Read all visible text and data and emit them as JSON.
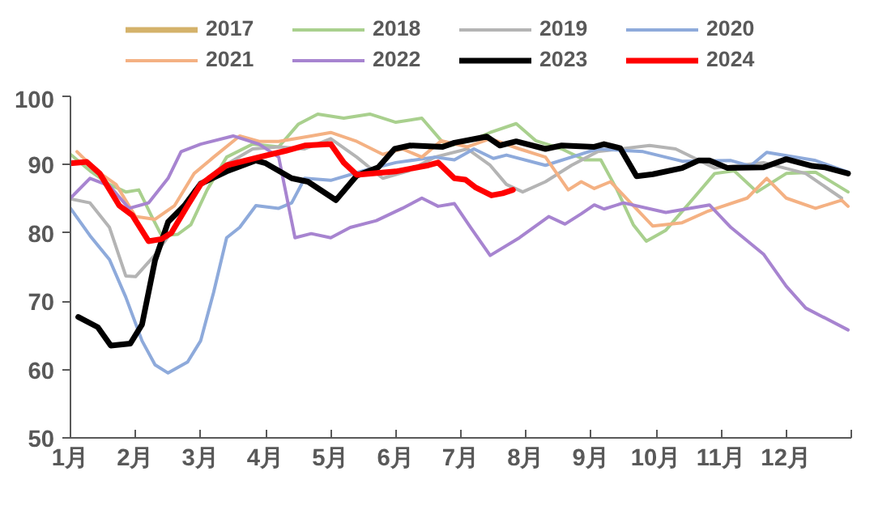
{
  "chart_data": {
    "type": "line",
    "xlim": [
      1,
      13
    ],
    "xticks": [
      {
        "value": 1,
        "label": "1月"
      },
      {
        "value": 2,
        "label": "2月"
      },
      {
        "value": 3,
        "label": "3月"
      },
      {
        "value": 4,
        "label": "4月"
      },
      {
        "value": 5,
        "label": "5月"
      },
      {
        "value": 6,
        "label": "6月"
      },
      {
        "value": 7,
        "label": "7月"
      },
      {
        "value": 8,
        "label": "8月"
      },
      {
        "value": 9,
        "label": "9月"
      },
      {
        "value": 10,
        "label": "10月"
      },
      {
        "value": 11,
        "label": "11月"
      },
      {
        "value": 12,
        "label": "12月"
      },
      {
        "value": 13,
        "label": null
      }
    ],
    "ylim": [
      50,
      100
    ],
    "yticks": [
      50,
      60,
      70,
      80,
      90,
      100
    ],
    "grid": false,
    "legend": "top",
    "marker": "none",
    "line_style": "solid",
    "series": [
      {
        "name": "2017",
        "color": "#d4b26a"
      },
      {
        "name": "2018",
        "color": "#a9d08e",
        "x": [
          1.0,
          1.3,
          1.6,
          1.85,
          2.05,
          2.25,
          2.4,
          2.65,
          2.85,
          3.1,
          3.4,
          3.8,
          4.2,
          4.5,
          4.8,
          5.2,
          5.6,
          6.0,
          6.4,
          6.7,
          6.8,
          7.15,
          7.45,
          7.85,
          8.15,
          8.55,
          8.9,
          9.15,
          9.4,
          9.65,
          9.85,
          10.15,
          10.55,
          10.9,
          11.2,
          11.55,
          12.0,
          12.45,
          12.95
        ],
        "values": [
          91.5,
          89.1,
          87.1,
          86,
          86.3,
          82.4,
          79.6,
          79.8,
          81.2,
          86.3,
          91.1,
          93,
          92.6,
          95.9,
          97.4,
          96.8,
          97.4,
          96.2,
          96.8,
          93.5,
          92.7,
          93.5,
          94.7,
          96,
          93.5,
          92.3,
          90.7,
          90.7,
          86.3,
          81.2,
          78.8,
          80.4,
          84.8,
          88.7,
          89.1,
          86,
          88.7,
          88.9,
          86
        ]
      },
      {
        "name": "2019",
        "color": "#b4b4b4",
        "x": [
          1.0,
          1.3,
          1.6,
          1.85,
          2.0,
          2.3,
          2.6,
          2.9,
          3.3,
          3.8,
          4.2,
          4.6,
          5.0,
          5.4,
          5.8,
          6.2,
          6.6,
          7.1,
          7.45,
          7.7,
          7.95,
          8.3,
          8.7,
          9.1,
          9.9,
          10.3,
          10.9,
          11.65,
          12.3,
          12.85
        ],
        "values": [
          85,
          84.4,
          80.8,
          73.7,
          73.6,
          76.8,
          80.8,
          86.3,
          89.5,
          92.3,
          92.6,
          92.3,
          93.8,
          91.1,
          88,
          89.1,
          91.1,
          92.3,
          89.9,
          87.1,
          86,
          87.5,
          89.9,
          91.9,
          92.8,
          92.3,
          89.5,
          90.3,
          88.7,
          85.1
        ]
      },
      {
        "name": "2020",
        "color": "#8eaadb",
        "x": [
          1.0,
          1.3,
          1.6,
          1.85,
          2.1,
          2.3,
          2.5,
          2.8,
          3.0,
          3.2,
          3.4,
          3.6,
          3.85,
          4.2,
          4.4,
          4.6,
          5.0,
          5.5,
          6.0,
          6.6,
          6.9,
          7.2,
          7.5,
          7.7,
          8.3,
          8.8,
          9.1,
          9.8,
          10.4,
          11.15,
          11.45,
          11.7,
          12.45,
          12.95
        ],
        "values": [
          83.6,
          79.6,
          76.1,
          70.6,
          64.2,
          60.7,
          59.5,
          61.1,
          64.2,
          71.3,
          79.3,
          80.8,
          84,
          83.6,
          84.4,
          88,
          87.7,
          89.1,
          90.3,
          91.1,
          90.7,
          92.3,
          90.9,
          91.4,
          89.9,
          91.4,
          92.3,
          91.9,
          90.5,
          90.6,
          89.8,
          91.8,
          90.6,
          88.9
        ]
      },
      {
        "name": "2021",
        "color": "#f4b183",
        "x": [
          1.1,
          1.4,
          1.7,
          2.0,
          2.3,
          2.6,
          2.9,
          3.2,
          3.6,
          3.9,
          4.2,
          4.7,
          5.0,
          5.4,
          5.8,
          6.1,
          6.4,
          6.7,
          7.1,
          7.45,
          7.9,
          8.3,
          8.65,
          8.85,
          9.05,
          9.3,
          9.65,
          9.95,
          10.4,
          10.8,
          11.4,
          11.7,
          12.0,
          12.45,
          12.85,
          12.95
        ],
        "values": [
          91.9,
          89.1,
          87.1,
          82.4,
          82,
          84,
          88.7,
          91.1,
          94.2,
          93.4,
          93.4,
          94.2,
          94.7,
          93.4,
          91.5,
          92.3,
          91.1,
          93.5,
          92.6,
          93.8,
          92.3,
          91.1,
          86.3,
          87.5,
          86.5,
          87.5,
          84,
          81,
          81.5,
          83.2,
          85.1,
          88,
          85.1,
          83.6,
          84.8,
          83.9
        ]
      },
      {
        "name": "2022",
        "color": "#a784d0",
        "x": [
          1.0,
          1.3,
          1.6,
          1.9,
          2.2,
          2.5,
          2.7,
          3.0,
          3.5,
          3.9,
          4.2,
          4.45,
          4.7,
          5.0,
          5.3,
          5.7,
          6.1,
          6.4,
          6.65,
          6.9,
          7.15,
          7.45,
          7.9,
          8.35,
          8.6,
          8.85,
          9.05,
          9.2,
          9.5,
          10.15,
          10.82,
          11.15,
          11.65,
          12.0,
          12.3,
          12.95
        ],
        "values": [
          85.1,
          88,
          86.9,
          83.6,
          84.4,
          88,
          91.9,
          93,
          94.2,
          93,
          91.1,
          79.3,
          79.9,
          79.3,
          80.8,
          81.8,
          83.6,
          85.1,
          83.9,
          84.3,
          80.8,
          76.7,
          79.3,
          82.4,
          81.3,
          82.8,
          84.1,
          83.5,
          84.4,
          83,
          84.1,
          80.8,
          76.9,
          72.2,
          69,
          65.8
        ]
      },
      {
        "name": "2023",
        "color": "#000000",
        "x": [
          1.12,
          1.42,
          1.62,
          1.92,
          2.1,
          2.3,
          2.5,
          2.75,
          3.0,
          3.4,
          3.85,
          4.0,
          4.4,
          4.65,
          5.08,
          5.4,
          5.73,
          5.98,
          6.22,
          6.72,
          6.9,
          7.4,
          7.6,
          7.85,
          8.3,
          8.55,
          9.05,
          9.2,
          9.45,
          9.7,
          9.95,
          10.4,
          10.65,
          10.82,
          11.1,
          11.65,
          12.0,
          12.4,
          12.6,
          12.95
        ],
        "values": [
          67.7,
          66.2,
          63.5,
          63.8,
          66.6,
          76,
          81.6,
          84,
          87.2,
          89,
          90.6,
          90.2,
          88,
          87.5,
          84.8,
          88.4,
          89.6,
          92.3,
          92.8,
          92.6,
          93.2,
          94.1,
          92.8,
          93.4,
          92.3,
          92.8,
          92.6,
          93,
          92.4,
          88.3,
          88.6,
          89.5,
          90.6,
          90.6,
          89.5,
          89.6,
          90.8,
          89.8,
          89.6,
          88.7
        ]
      },
      {
        "name": "2024",
        "color": "#ff0000",
        "x": [
          1.0,
          1.25,
          1.45,
          1.75,
          1.95,
          2.2,
          2.4,
          2.55,
          2.8,
          3.0,
          3.4,
          3.9,
          4.3,
          4.6,
          5.0,
          5.2,
          5.4,
          6.0,
          6.5,
          6.65,
          6.9,
          7.07,
          7.22,
          7.47,
          7.64,
          7.8
        ],
        "values": [
          90.2,
          90.4,
          88.7,
          84,
          82.6,
          78.8,
          79.1,
          80,
          84,
          87.1,
          89.9,
          91.1,
          92,
          92.8,
          93,
          90.3,
          88.5,
          89,
          89.9,
          90.3,
          88,
          87.8,
          86.7,
          85.5,
          85.8,
          86.3
        ]
      }
    ]
  }
}
